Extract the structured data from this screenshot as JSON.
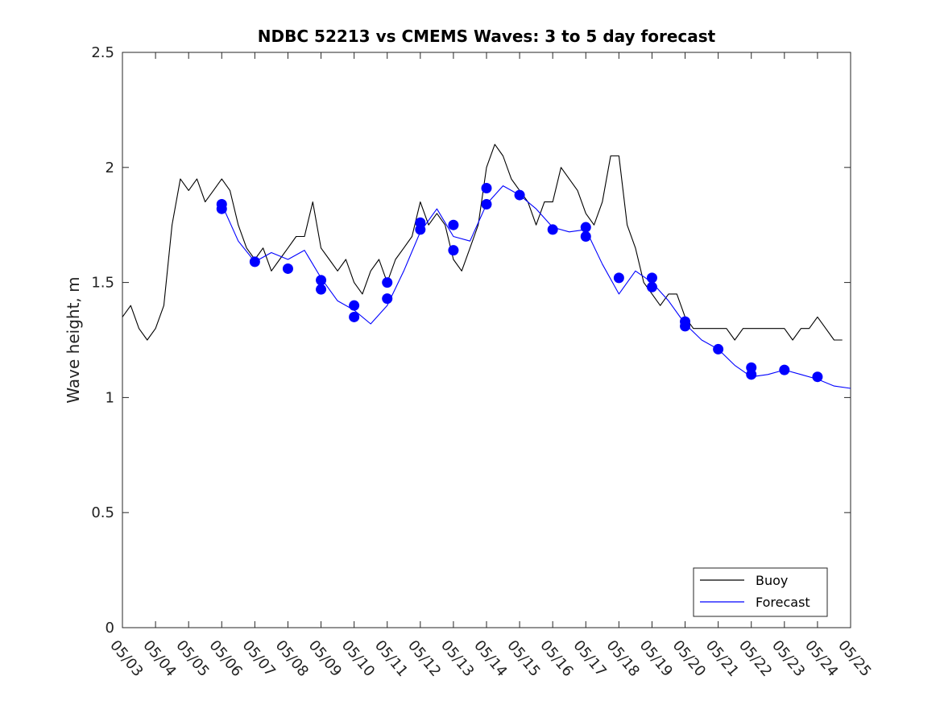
{
  "chart_data": {
    "type": "line",
    "title": "NDBC 52213 vs CMEMS Waves: 3 to 5 day forecast",
    "ylabel": "Wave height, m",
    "xlabel": "",
    "ylim": [
      0,
      2.5
    ],
    "xlim": [
      "05/03",
      "05/25"
    ],
    "y_ticks": [
      "0",
      "0.5",
      "1",
      "1.5",
      "2",
      "2.5"
    ],
    "x_ticks": [
      "05/03",
      "05/04",
      "05/05",
      "05/06",
      "05/07",
      "05/08",
      "05/09",
      "05/10",
      "05/11",
      "05/12",
      "05/13",
      "05/14",
      "05/15",
      "05/16",
      "05/17",
      "05/18",
      "05/19",
      "05/20",
      "05/21",
      "05/22",
      "05/23",
      "05/24",
      "05/25"
    ],
    "grid": false,
    "legend_position": "bottom-right",
    "colors": {
      "buoy": "#000000",
      "forecast": "#0000ff"
    },
    "series": [
      {
        "name": "Buoy",
        "x": [
          "05/03 00:00",
          "05/03 06:00",
          "05/03 12:00",
          "05/03 18:00",
          "05/04 00:00",
          "05/04 06:00",
          "05/04 12:00",
          "05/04 18:00",
          "05/05 00:00",
          "05/05 06:00",
          "05/05 12:00",
          "05/05 18:00",
          "05/06 00:00",
          "05/06 06:00",
          "05/06 12:00",
          "05/06 18:00",
          "05/07 00:00",
          "05/07 06:00",
          "05/07 12:00",
          "05/07 18:00",
          "05/08 00:00",
          "05/08 06:00",
          "05/08 12:00",
          "05/08 18:00",
          "05/09 00:00",
          "05/09 06:00",
          "05/09 12:00",
          "05/09 18:00",
          "05/10 00:00",
          "05/10 06:00",
          "05/10 12:00",
          "05/10 18:00",
          "05/11 00:00",
          "05/11 06:00",
          "05/11 12:00",
          "05/11 18:00",
          "05/12 00:00",
          "05/12 06:00",
          "05/12 12:00",
          "05/12 18:00",
          "05/13 00:00",
          "05/13 06:00",
          "05/13 12:00",
          "05/13 18:00",
          "05/14 00:00",
          "05/14 06:00",
          "05/14 12:00",
          "05/14 18:00",
          "05/15 00:00",
          "05/15 06:00",
          "05/15 12:00",
          "05/15 18:00",
          "05/16 00:00",
          "05/16 06:00",
          "05/16 12:00",
          "05/16 18:00",
          "05/17 00:00",
          "05/17 06:00",
          "05/17 12:00",
          "05/17 18:00",
          "05/18 00:00",
          "05/18 06:00",
          "05/18 12:00",
          "05/18 18:00",
          "05/19 00:00",
          "05/19 06:00",
          "05/19 12:00",
          "05/19 18:00",
          "05/20 00:00",
          "05/20 06:00",
          "05/20 12:00",
          "05/20 18:00",
          "05/21 00:00",
          "05/21 06:00",
          "05/21 12:00",
          "05/21 18:00",
          "05/22 00:00",
          "05/22 06:00",
          "05/22 12:00",
          "05/22 18:00",
          "05/23 00:00",
          "05/23 06:00",
          "05/23 12:00",
          "05/23 18:00",
          "05/24 00:00",
          "05/24 06:00",
          "05/24 12:00",
          "05/24 18:00"
        ],
        "values": [
          1.35,
          1.4,
          1.3,
          1.25,
          1.3,
          1.4,
          1.75,
          1.95,
          1.9,
          1.95,
          1.85,
          1.9,
          1.95,
          1.9,
          1.75,
          1.65,
          1.6,
          1.65,
          1.55,
          1.6,
          1.65,
          1.7,
          1.7,
          1.85,
          1.65,
          1.6,
          1.55,
          1.6,
          1.5,
          1.45,
          1.55,
          1.6,
          1.5,
          1.6,
          1.65,
          1.7,
          1.85,
          1.75,
          1.8,
          1.75,
          1.6,
          1.55,
          1.65,
          1.75,
          2.0,
          2.1,
          2.05,
          1.95,
          1.9,
          1.85,
          1.75,
          1.85,
          1.85,
          2.0,
          1.95,
          1.9,
          1.8,
          1.75,
          1.85,
          2.05,
          2.05,
          1.75,
          1.65,
          1.5,
          1.45,
          1.4,
          1.45,
          1.45,
          1.35,
          1.3,
          1.3,
          1.3,
          1.3,
          1.3,
          1.25,
          1.3,
          1.3,
          1.3,
          1.3,
          1.3,
          1.3,
          1.25,
          1.3,
          1.3,
          1.35,
          1.3,
          1.25,
          1.25
        ]
      },
      {
        "name": "Forecast",
        "x": [
          "05/06 00:00",
          "05/06 12:00",
          "05/07 00:00",
          "05/07 12:00",
          "05/08 00:00",
          "05/08 12:00",
          "05/09 00:00",
          "05/09 12:00",
          "05/10 00:00",
          "05/10 12:00",
          "05/11 00:00",
          "05/11 12:00",
          "05/12 00:00",
          "05/12 12:00",
          "05/13 00:00",
          "05/13 12:00",
          "05/14 00:00",
          "05/14 12:00",
          "05/15 00:00",
          "05/15 12:00",
          "05/16 00:00",
          "05/16 12:00",
          "05/17 00:00",
          "05/17 12:00",
          "05/18 00:00",
          "05/18 12:00",
          "05/19 00:00",
          "05/19 12:00",
          "05/20 00:00",
          "05/20 12:00",
          "05/21 00:00",
          "05/21 12:00",
          "05/22 00:00",
          "05/22 12:00",
          "05/23 00:00",
          "05/23 12:00",
          "05/24 00:00",
          "05/24 12:00",
          "05/25 00:00"
        ],
        "values": [
          1.84,
          1.68,
          1.59,
          1.63,
          1.6,
          1.64,
          1.52,
          1.42,
          1.38,
          1.32,
          1.4,
          1.55,
          1.72,
          1.82,
          1.7,
          1.68,
          1.84,
          1.92,
          1.88,
          1.82,
          1.74,
          1.72,
          1.73,
          1.58,
          1.45,
          1.55,
          1.5,
          1.42,
          1.32,
          1.25,
          1.21,
          1.14,
          1.09,
          1.1,
          1.12,
          1.1,
          1.08,
          1.05,
          1.04
        ]
      }
    ],
    "markers": {
      "x": [
        "05/06 00:00",
        "05/06 00:00",
        "05/07 00:00",
        "05/08 00:00",
        "05/09 00:00",
        "05/09 00:00",
        "05/10 00:00",
        "05/10 00:00",
        "05/11 00:00",
        "05/11 00:00",
        "05/12 00:00",
        "05/12 00:00",
        "05/13 00:00",
        "05/13 00:00",
        "05/14 00:00",
        "05/14 00:00",
        "05/15 00:00",
        "05/16 00:00",
        "05/17 00:00",
        "05/17 00:00",
        "05/18 00:00",
        "05/19 00:00",
        "05/19 00:00",
        "05/20 00:00",
        "05/20 00:00",
        "05/21 00:00",
        "05/22 00:00",
        "05/22 00:00",
        "05/23 00:00",
        "05/24 00:00"
      ],
      "values": [
        1.84,
        1.82,
        1.59,
        1.56,
        1.51,
        1.47,
        1.4,
        1.35,
        1.5,
        1.43,
        1.76,
        1.73,
        1.75,
        1.64,
        1.91,
        1.84,
        1.88,
        1.73,
        1.74,
        1.7,
        1.52,
        1.52,
        1.48,
        1.33,
        1.31,
        1.21,
        1.13,
        1.1,
        1.12,
        1.09
      ]
    }
  }
}
